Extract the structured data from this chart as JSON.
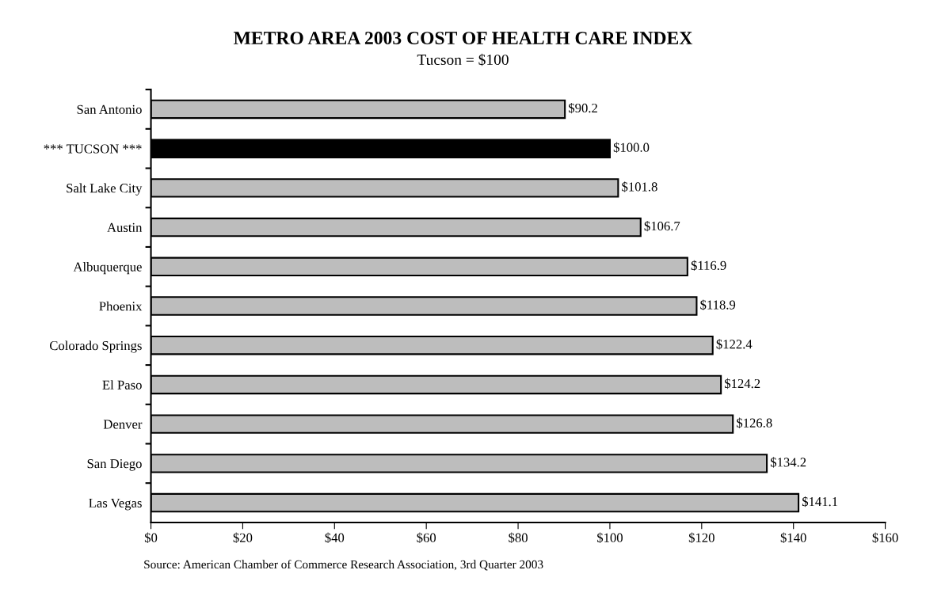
{
  "chart_data": {
    "type": "bar",
    "orientation": "horizontal",
    "title": "METRO AREA 2003 COST OF HEALTH CARE INDEX",
    "subtitle": "Tucson = $100",
    "categories": [
      "San Antonio",
      "*** TUCSON ***",
      "Salt Lake City",
      "Austin",
      "Albuquerque",
      "Phoenix",
      "Colorado Springs",
      "El Paso",
      "Denver",
      "San Diego",
      "Las Vegas"
    ],
    "values": [
      90.2,
      100.0,
      101.8,
      106.7,
      116.9,
      118.9,
      122.4,
      124.2,
      126.8,
      134.2,
      141.1
    ],
    "colors": [
      "#bdbdbd",
      "#000000",
      "#bdbdbd",
      "#bdbdbd",
      "#bdbdbd",
      "#bdbdbd",
      "#bdbdbd",
      "#bdbdbd",
      "#bdbdbd",
      "#bdbdbd",
      "#bdbdbd"
    ],
    "value_labels": [
      "$90.2",
      "$100.0",
      "$101.8",
      "$106.7",
      "$116.9",
      "$118.9",
      "$122.4",
      "$124.2",
      "$126.8",
      "$134.2",
      "$141.1"
    ],
    "xlim": [
      0,
      160
    ],
    "xticks": [
      {
        "value": 0,
        "label": "$0"
      },
      {
        "value": 20,
        "label": "$20"
      },
      {
        "value": 40,
        "label": "$40"
      },
      {
        "value": 60,
        "label": "$60"
      },
      {
        "value": 80,
        "label": "$80"
      },
      {
        "value": 100,
        "label": "$100"
      },
      {
        "value": 120,
        "label": "$120"
      },
      {
        "value": 140,
        "label": "$140"
      },
      {
        "value": 160,
        "label": "$160"
      }
    ],
    "grid": false,
    "legend": false,
    "annotations": [
      "Source: American Chamber of Commerce Research Association, 3rd Quarter 2003"
    ]
  }
}
